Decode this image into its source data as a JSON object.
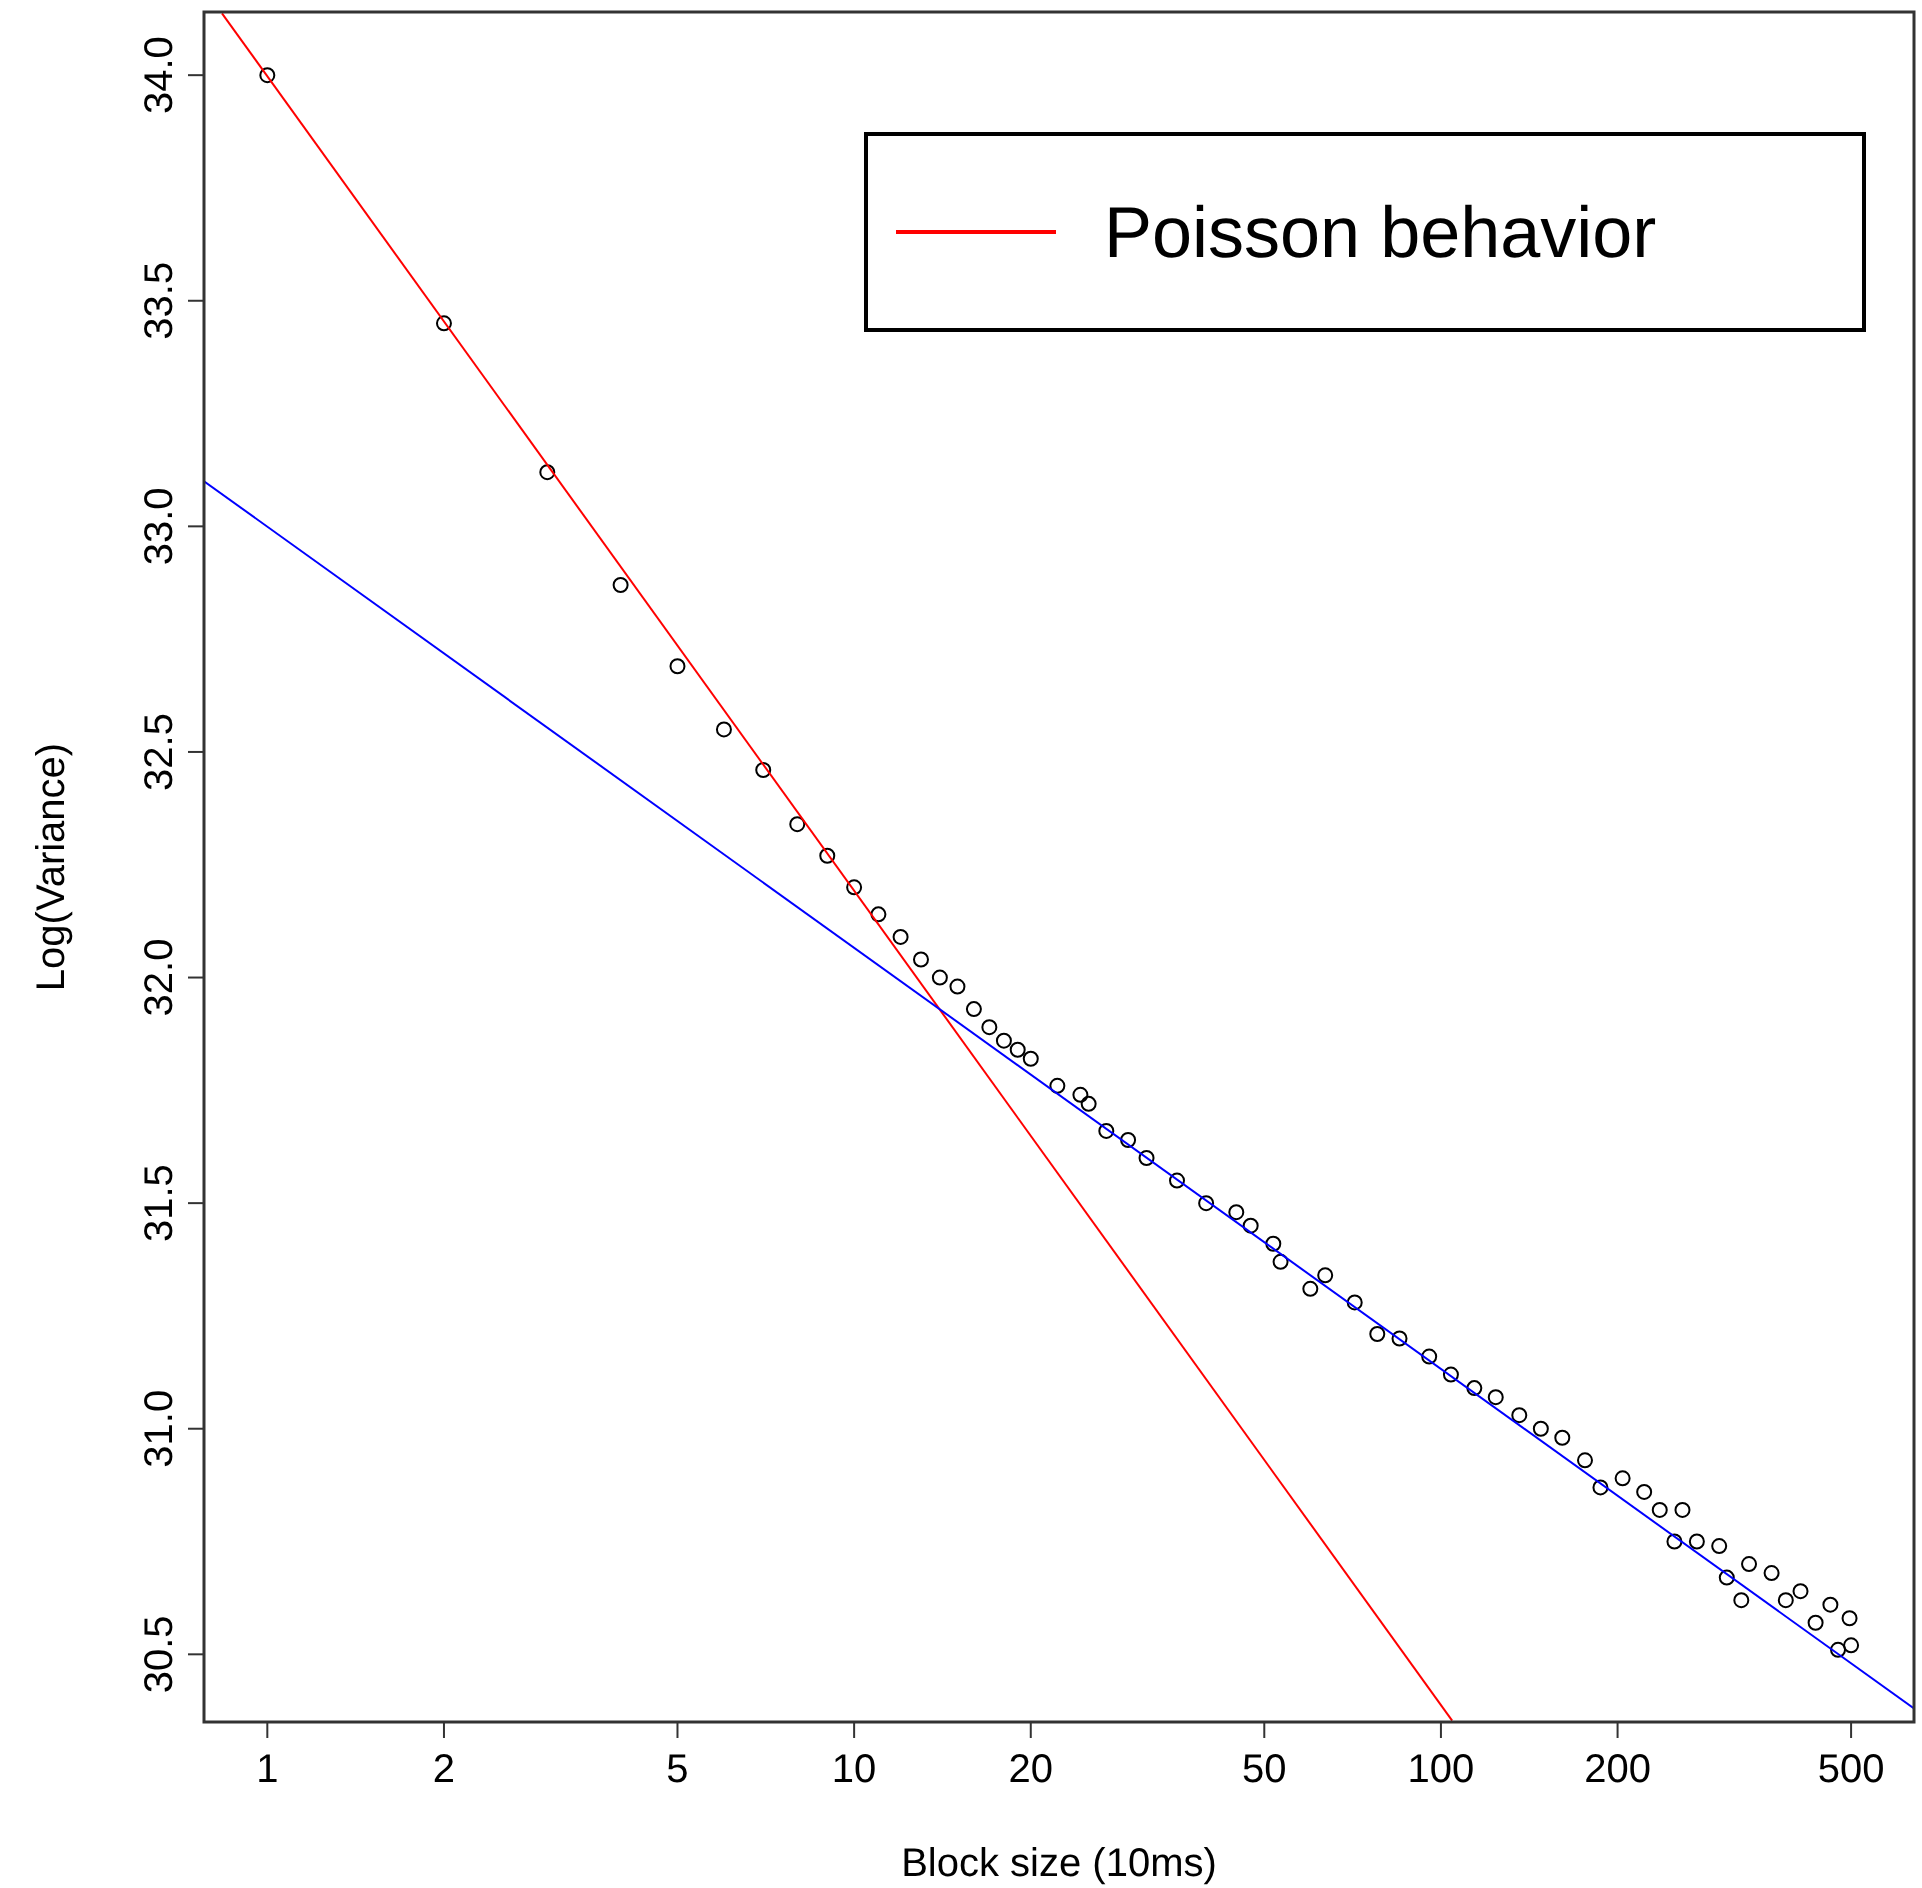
{
  "chart_data": {
    "type": "scatter",
    "xlabel": "Block size (10ms)",
    "ylabel": "Log(Variance)",
    "log": "x",
    "grid": false,
    "legend": "top right",
    "xlim": [
      0.78,
      640
    ],
    "ylim": [
      30.35,
      34.14
    ],
    "xticks": [
      1,
      2,
      5,
      10,
      20,
      50,
      100,
      200,
      500
    ],
    "yticks": [
      {
        "value": 30.5,
        "label": "30.5"
      },
      {
        "value": 31,
        "label": "31.0"
      },
      {
        "value": 31.5,
        "label": "31.5"
      },
      {
        "value": 32,
        "label": "32.0"
      },
      {
        "value": 32.5,
        "label": "32.5"
      },
      {
        "value": 33,
        "label": "33.0"
      },
      {
        "value": 33.5,
        "label": "33.5"
      },
      {
        "value": 34,
        "label": "34.0"
      }
    ],
    "series": [
      {
        "color": "#000000",
        "marker": "circle",
        "x": [
          1,
          2,
          3,
          4,
          5,
          6,
          7,
          8,
          9,
          10,
          11,
          12,
          13,
          14,
          15,
          16,
          17,
          18,
          19,
          20,
          22.2,
          24.3,
          25.1,
          26.9,
          29.3,
          31.5,
          35.5,
          39.8,
          44.8,
          47.4,
          51.8,
          53.3,
          59.9,
          63.5,
          71.3,
          77.9,
          85,
          95.5,
          104,
          114,
          124,
          136,
          148,
          161,
          176,
          187,
          204,
          222,
          236,
          250,
          258,
          273,
          298,
          307,
          325,
          335,
          366,
          387,
          410,
          435,
          461,
          475,
          497,
          500
        ],
        "values": [
          34.0,
          33.45,
          33.12,
          32.87,
          32.69,
          32.55,
          32.46,
          32.34,
          32.27,
          32.2,
          32.14,
          32.09,
          32.04,
          32.0,
          31.98,
          31.93,
          31.89,
          31.86,
          31.84,
          31.82,
          31.76,
          31.74,
          31.72,
          31.66,
          31.64,
          31.6,
          31.55,
          31.5,
          31.48,
          31.45,
          31.41,
          31.37,
          31.31,
          31.34,
          31.28,
          31.21,
          31.2,
          31.16,
          31.12,
          31.09,
          31.07,
          31.03,
          31.0,
          30.98,
          30.93,
          30.87,
          30.89,
          30.86,
          30.82,
          30.75,
          30.82,
          30.75,
          30.74,
          30.67,
          30.62,
          30.7,
          30.68,
          30.62,
          30.64,
          30.57,
          30.61,
          30.51,
          30.58,
          30.52
        ]
      },
      {
        "type": "line",
        "name": "Poisson behavior",
        "color": "#ff0000",
        "marker": "none",
        "x": [
          0.837,
          104.5
        ],
        "values": [
          34.137,
          30.353
        ]
      },
      {
        "type": "line",
        "color": "#0000ff",
        "marker": "none",
        "x": [
          0.78,
          640
        ],
        "values": [
          33.1,
          30.38
        ]
      }
    ]
  }
}
